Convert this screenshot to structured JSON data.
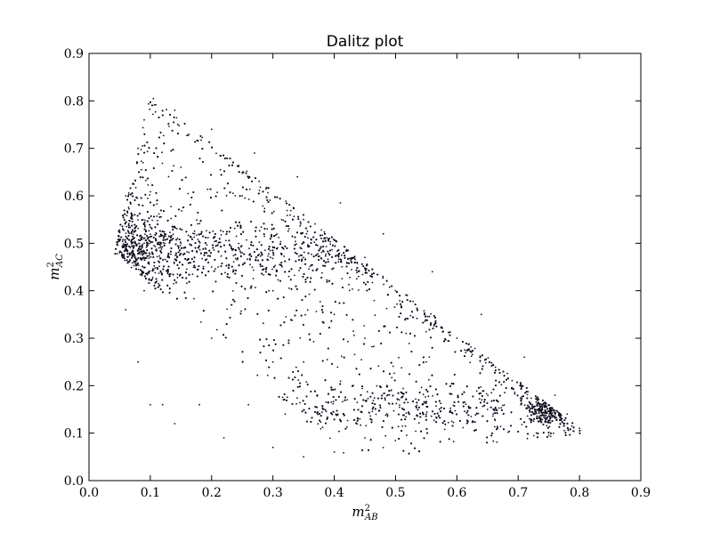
{
  "chart_data": {
    "type": "scatter",
    "title": "Dalitz plot",
    "xlabel": "m²_AB",
    "ylabel": "m²_AC",
    "xlabel_parts": {
      "base": "m",
      "sup": "2",
      "sub": "AB"
    },
    "ylabel_parts": {
      "base": "m",
      "sup": "2",
      "sub": "AC"
    },
    "xlim": [
      0.0,
      0.9
    ],
    "ylim": [
      0.0,
      0.9
    ],
    "xticks": [
      "0.0",
      "0.1",
      "0.2",
      "0.3",
      "0.4",
      "0.5",
      "0.6",
      "0.7",
      "0.8",
      "0.9"
    ],
    "yticks": [
      "0.0",
      "0.1",
      "0.2",
      "0.3",
      "0.4",
      "0.5",
      "0.6",
      "0.7",
      "0.8",
      "0.9"
    ],
    "grid": false,
    "legend": "none",
    "marker_color": "#111122",
    "approx_point_count": 12000,
    "kinematic_boundary": [
      [
        0.1,
        0.81
      ],
      [
        0.81,
        0.1
      ],
      [
        0.43,
        0.04
      ],
      [
        0.04,
        0.48
      ],
      [
        0.1,
        0.81
      ]
    ],
    "series": [
      {
        "points": [
          [
            0.105,
            0.805
          ],
          [
            0.14,
            0.78
          ],
          [
            0.2,
            0.74
          ],
          [
            0.27,
            0.69
          ],
          [
            0.34,
            0.64
          ],
          [
            0.41,
            0.585
          ],
          [
            0.48,
            0.52
          ],
          [
            0.56,
            0.44
          ],
          [
            0.64,
            0.35
          ],
          [
            0.71,
            0.26
          ],
          [
            0.76,
            0.18
          ],
          [
            0.8,
            0.11
          ],
          [
            0.78,
            0.14
          ],
          [
            0.74,
            0.16
          ],
          [
            0.65,
            0.15
          ],
          [
            0.55,
            0.14
          ],
          [
            0.45,
            0.09
          ],
          [
            0.4,
            0.06
          ],
          [
            0.35,
            0.05
          ],
          [
            0.3,
            0.07
          ],
          [
            0.22,
            0.09
          ],
          [
            0.14,
            0.12
          ],
          [
            0.1,
            0.16
          ],
          [
            0.08,
            0.25
          ],
          [
            0.06,
            0.36
          ],
          [
            0.05,
            0.48
          ],
          [
            0.06,
            0.6
          ],
          [
            0.08,
            0.7
          ],
          [
            0.09,
            0.76
          ],
          [
            0.09,
            0.5
          ],
          [
            0.09,
            0.4
          ],
          [
            0.25,
            0.48
          ],
          [
            0.35,
            0.47
          ],
          [
            0.45,
            0.47
          ],
          [
            0.2,
            0.3
          ],
          [
            0.3,
            0.25
          ],
          [
            0.45,
            0.3
          ],
          [
            0.55,
            0.25
          ],
          [
            0.25,
            0.6
          ],
          [
            0.35,
            0.55
          ],
          [
            0.12,
            0.16
          ],
          [
            0.18,
            0.16
          ],
          [
            0.26,
            0.16
          ],
          [
            0.32,
            0.14
          ],
          [
            0.15,
            0.5
          ],
          [
            0.2,
            0.45
          ],
          [
            0.3,
            0.4
          ],
          [
            0.4,
            0.35
          ],
          [
            0.5,
            0.4
          ],
          [
            0.6,
            0.3
          ]
        ]
      }
    ]
  }
}
